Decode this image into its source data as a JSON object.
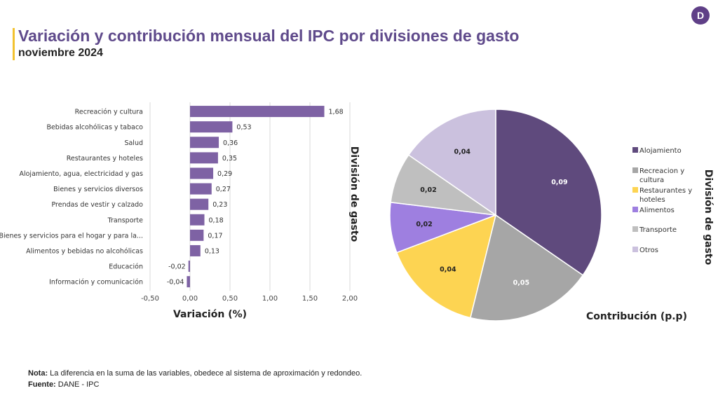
{
  "header": {
    "title": "Variación  y contribución mensual del IPC por divisiones de gasto",
    "subtitle": "noviembre 2024",
    "logo_letter": "D"
  },
  "chart_data": [
    {
      "type": "bar",
      "orientation": "horizontal",
      "categories": [
        "Recreación y cultura",
        "Bebidas alcohólicas y tabaco",
        "Salud",
        "Restaurantes y hoteles",
        "Alojamiento, agua, electricidad y gas",
        "Bienes y servicios diversos",
        "Prendas de vestir y calzado",
        "Transporte",
        "Bienes y servicios para el hogar y para la...",
        "Alimentos y bebidas no alcohólicas",
        "Educación",
        "Información y comunicación"
      ],
      "values": [
        1.68,
        0.53,
        0.36,
        0.35,
        0.29,
        0.27,
        0.23,
        0.18,
        0.17,
        0.13,
        -0.02,
        -0.04
      ],
      "value_labels": [
        "1,68",
        "0,53",
        "0,36",
        "0,35",
        "0,29",
        "0,27",
        "0,23",
        "0,18",
        "0,17",
        "0,13",
        "-0,02",
        "-0,04"
      ],
      "xlabel": "Variación (%)",
      "ylabel": "División de gasto",
      "xlim": [
        -0.5,
        2.0
      ],
      "xticks": [
        -0.5,
        0,
        0.5,
        1,
        1.5,
        2
      ],
      "xtick_labels": [
        "-0,50",
        "0,00",
        "0,50",
        "1,00",
        "1,50",
        "2,00"
      ],
      "grid": true,
      "color": "#7e62a4"
    },
    {
      "type": "pie",
      "labels": [
        "Alojamiento",
        "Recreacion y cultura",
        "Restaurantes y hoteles",
        "Alimentos",
        "Transporte",
        "Otros"
      ],
      "values": [
        0.09,
        0.05,
        0.04,
        0.02,
        0.02,
        0.04
      ],
      "value_labels": [
        "0,09",
        "0,05",
        "0,04",
        "0,02",
        "0,02",
        "0,04"
      ],
      "colors": [
        "#5f4a7d",
        "#a6a6a6",
        "#fdd452",
        "#9e7fe0",
        "#bfbfbf",
        "#cbc1de"
      ],
      "xlabel": "Contribución (p.p)",
      "ylabel": "División de gasto",
      "legend_position": "right"
    }
  ],
  "footer": {
    "note_label": "Nota:",
    "note_text": " La diferencia en la suma de las variables, obedece al sistema de aproximación y redondeo.",
    "source_label": "Fuente:",
    "source_text": " DANE - IPC"
  }
}
